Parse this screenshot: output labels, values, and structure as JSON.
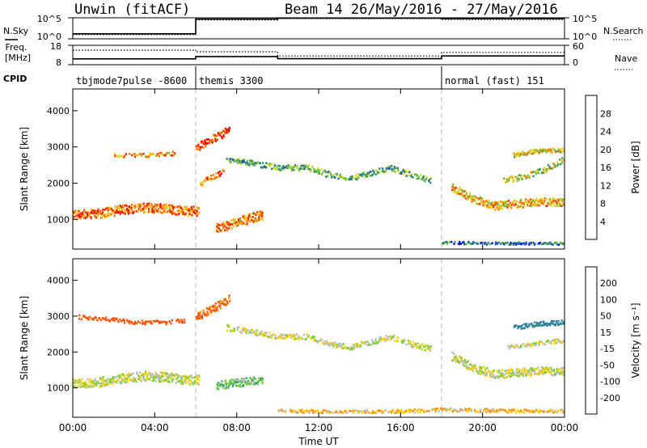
{
  "header": {
    "station": "Unwin (fitACF)",
    "beam_date": "Beam 14 26/May/2016 - 27/May/2016"
  },
  "left_labels": {
    "nsky": "N.Sky",
    "freq_top": "Freq.",
    "freq_unit": "[MHz]",
    "cpid": "CPID"
  },
  "right_labels": {
    "nsearch": "N.Search",
    "nave": "Nave"
  },
  "cpid_segments": [
    {
      "label": "tbjmode7pulse -8600",
      "start_hour": 0,
      "end_hour": 6
    },
    {
      "label": "themis 3300",
      "start_hour": 6,
      "end_hour": 18
    },
    {
      "label": "normal (fast) 151",
      "start_hour": 18,
      "end_hour": 24
    }
  ],
  "chart_data": [
    {
      "type": "line",
      "panel": "noise",
      "left_ticks": [
        "10^5",
        "10^0"
      ],
      "right_ticks": [
        "10^5",
        "10^0"
      ],
      "series": [
        {
          "name": "N.Sky",
          "x": [
            0,
            6,
            6,
            10,
            10,
            18,
            18,
            24
          ],
          "y": [
            1.2,
            1.2,
            4.7,
            4.7,
            4.9,
            4.9,
            4.8,
            4.8
          ]
        },
        {
          "name": "N.Search",
          "x": [
            0,
            6,
            6,
            10,
            10,
            18,
            18,
            24
          ],
          "y": [
            1.0,
            1.0,
            4.5,
            4.5,
            4.8,
            4.8,
            4.6,
            4.6
          ]
        }
      ]
    },
    {
      "type": "line",
      "panel": "freq_nave",
      "left_ticks": [
        "18",
        "8"
      ],
      "right_ticks": [
        "60",
        "0"
      ],
      "series": [
        {
          "name": "Freq.",
          "x": [
            0,
            6,
            6,
            10,
            10,
            18,
            18,
            24
          ],
          "y": [
            11,
            11,
            12.2,
            12.2,
            11.1,
            11.1,
            12.5,
            12.5
          ]
        },
        {
          "name": "Nave",
          "x": [
            0,
            6,
            6,
            10,
            10,
            18,
            18,
            24
          ],
          "y": [
            45,
            45,
            40,
            40,
            27,
            27,
            38,
            38
          ]
        }
      ]
    },
    {
      "type": "heatmap",
      "panel": "power",
      "ylabel": "Slant Range [km]",
      "y_ticks": [
        1000,
        2000,
        3000,
        4000
      ],
      "ylim": [
        180,
        4600
      ],
      "colorbar": {
        "label": "Power [dB]",
        "ticks": [
          "4",
          "8",
          "12",
          "16",
          "20",
          "24",
          "28"
        ],
        "colors": [
          "#0000ff",
          "#1e50b8",
          "#2a7d90",
          "#3a9a5a",
          "#70c030",
          "#d8d820",
          "#ffb000",
          "#ff6a00",
          "#ff2800",
          "#e80000"
        ]
      },
      "bands": [
        {
          "x": [
            0,
            1.2,
            2.5,
            3.5,
            4.5,
            5.5,
            6.2
          ],
          "y": [
            1150,
            1180,
            1300,
            1350,
            1320,
            1250,
            1250
          ],
          "width": 260,
          "value": 24
        },
        {
          "x": [
            2,
            3,
            4,
            5
          ],
          "y": [
            2800,
            2780,
            2800,
            2850
          ],
          "width": 110,
          "value": 22
        },
        {
          "x": [
            6,
            6.5,
            7,
            7.5,
            7.7
          ],
          "y": [
            3000,
            3150,
            3300,
            3450,
            3550
          ],
          "width": 220,
          "value": 26
        },
        {
          "x": [
            6.2,
            6.8,
            7.4
          ],
          "y": [
            2000,
            2200,
            2350
          ],
          "width": 140,
          "value": 24
        },
        {
          "x": [
            7,
            7.8,
            8.6,
            9.3
          ],
          "y": [
            800,
            900,
            1050,
            1150
          ],
          "width": 260,
          "value": 22
        },
        {
          "x": [
            7.5,
            9,
            10,
            11.5,
            12.5,
            13.5,
            14.5,
            15.5,
            16.5,
            17.5
          ],
          "y": [
            2700,
            2550,
            2450,
            2450,
            2250,
            2150,
            2300,
            2450,
            2250,
            2100
          ],
          "width": 150,
          "value": 12
        },
        {
          "x": [
            18.5,
            19.5,
            20.5,
            21.5,
            22.5,
            24
          ],
          "y": [
            1900,
            1600,
            1400,
            1450,
            1500,
            1500
          ],
          "width": 220,
          "value": 20
        },
        {
          "x": [
            21,
            22,
            23,
            24
          ],
          "y": [
            2100,
            2200,
            2400,
            2700
          ],
          "width": 150,
          "value": 16
        },
        {
          "x": [
            21.5,
            22.5,
            24
          ],
          "y": [
            2800,
            2900,
            2950
          ],
          "width": 120,
          "value": 18
        },
        {
          "x": [
            18,
            19.5,
            21,
            22.5,
            24
          ],
          "y": [
            380,
            370,
            360,
            360,
            360
          ],
          "width": 70,
          "value": 8
        }
      ]
    },
    {
      "type": "heatmap",
      "panel": "velocity",
      "ylabel": "Slant Range [km]",
      "y_ticks": [
        1000,
        2000,
        3000,
        4000
      ],
      "ylim": [
        180,
        4600
      ],
      "x_ticks": [
        "00:00",
        "04:00",
        "08:00",
        "12:00",
        "16:00",
        "20:00",
        "00:00"
      ],
      "x_tick_hours": [
        0,
        4,
        8,
        12,
        16,
        20,
        24
      ],
      "xlabel": "Time UT",
      "colorbar": {
        "label": "Velocity [m s⁻¹]",
        "ticks": [
          "200",
          "100",
          "50",
          "15",
          "-15",
          "-50",
          "-100",
          "-200"
        ],
        "colors": [
          "#2040ff",
          "#2a7fa0",
          "#3aa860",
          "#78d030",
          "#bbbbbb",
          "#ffd000",
          "#ff9000",
          "#ff5000",
          "#ff0000"
        ]
      },
      "bands": [
        {
          "x": [
            0,
            1.2,
            2.5,
            3.5,
            4.5,
            5.5,
            6.2
          ],
          "y": [
            1150,
            1180,
            1300,
            1350,
            1320,
            1250,
            1250
          ],
          "width": 260,
          "value": 0
        },
        {
          "x": [
            0.3,
            1.5,
            3,
            4.5,
            5.5
          ],
          "y": [
            3000,
            2950,
            2850,
            2850,
            2900
          ],
          "width": 110,
          "value": -150
        },
        {
          "x": [
            6,
            6.5,
            7,
            7.5,
            7.7
          ],
          "y": [
            3000,
            3150,
            3300,
            3450,
            3550
          ],
          "width": 220,
          "value": -120
        },
        {
          "x": [
            7,
            7.8,
            8.6,
            9.3
          ],
          "y": [
            1100,
            1150,
            1200,
            1250
          ],
          "width": 230,
          "value": 40
        },
        {
          "x": [
            7.5,
            9,
            10,
            11.5,
            12.5,
            13.5,
            14.5,
            15.5,
            16.5,
            17.5
          ],
          "y": [
            2700,
            2550,
            2450,
            2450,
            2250,
            2150,
            2300,
            2450,
            2250,
            2100
          ],
          "width": 150,
          "value": 0
        },
        {
          "x": [
            18.5,
            19.5,
            20.5,
            21.5,
            22.5,
            24
          ],
          "y": [
            1900,
            1600,
            1400,
            1450,
            1500,
            1500
          ],
          "width": 240,
          "value": 0
        },
        {
          "x": [
            21.5,
            22.5,
            24
          ],
          "y": [
            2700,
            2800,
            2850
          ],
          "width": 130,
          "value": 140
        },
        {
          "x": [
            21.2,
            22.5,
            24
          ],
          "y": [
            2150,
            2250,
            2350
          ],
          "width": 120,
          "value": 0
        },
        {
          "x": [
            10,
            13,
            16,
            18,
            20,
            22,
            24
          ],
          "y": [
            380,
            360,
            370,
            420,
            400,
            380,
            380
          ],
          "width": 90,
          "value": -40
        }
      ]
    }
  ]
}
